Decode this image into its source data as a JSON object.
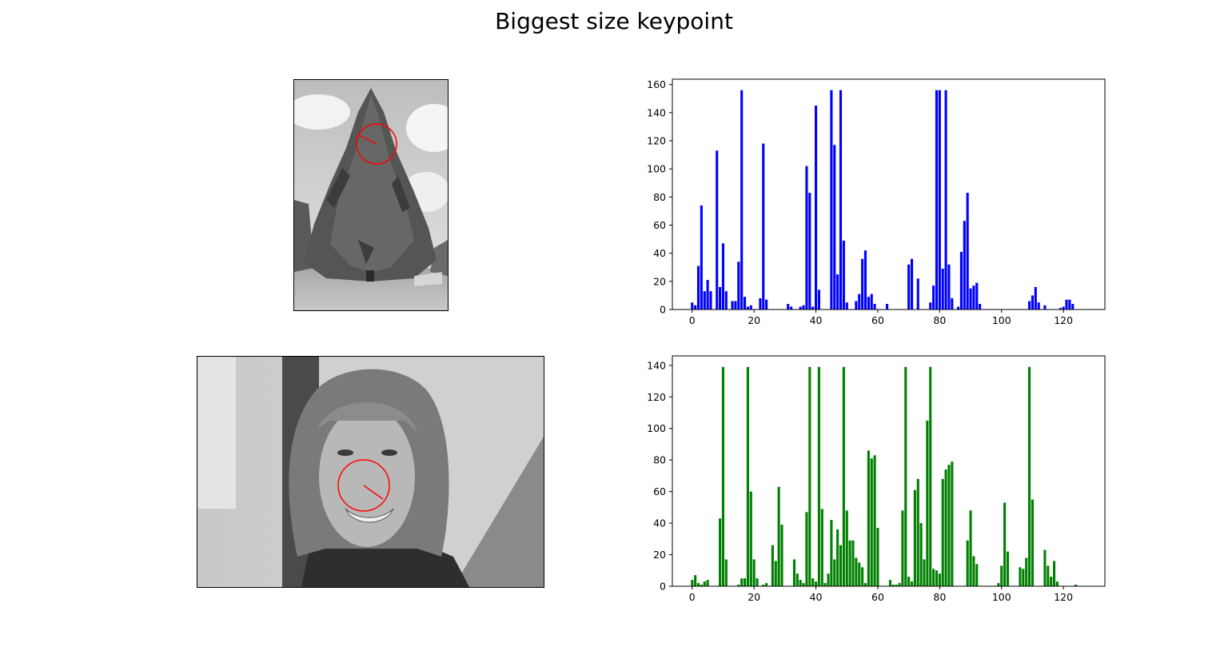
{
  "figure": {
    "title": "Biggest size keypoint"
  },
  "images": [
    {
      "name": "tree",
      "marker_color": "#ff0000"
    },
    {
      "name": "face",
      "marker_color": "#ff0000"
    }
  ],
  "chart_data": [
    {
      "type": "bar",
      "title": "",
      "xlabel": "",
      "ylabel": "",
      "color": "#0000ff",
      "xlim": [
        -6.4,
        133.4
      ],
      "ylim": [
        0,
        163.8
      ],
      "xticks": [
        0,
        20,
        40,
        60,
        80,
        100,
        120
      ],
      "yticks": [
        0,
        20,
        40,
        60,
        80,
        100,
        120,
        140,
        160
      ],
      "x": [
        0,
        1,
        2,
        3,
        4,
        5,
        6,
        7,
        8,
        9,
        10,
        11,
        12,
        13,
        14,
        15,
        16,
        17,
        18,
        19,
        20,
        21,
        22,
        23,
        24,
        25,
        26,
        27,
        28,
        29,
        30,
        31,
        32,
        33,
        34,
        35,
        36,
        37,
        38,
        39,
        40,
        41,
        42,
        43,
        44,
        45,
        46,
        47,
        48,
        49,
        50,
        51,
        52,
        53,
        54,
        55,
        56,
        57,
        58,
        59,
        60,
        61,
        62,
        63,
        64,
        65,
        66,
        67,
        68,
        69,
        70,
        71,
        72,
        73,
        74,
        75,
        76,
        77,
        78,
        79,
        80,
        81,
        82,
        83,
        84,
        85,
        86,
        87,
        88,
        89,
        90,
        91,
        92,
        93,
        94,
        95,
        96,
        97,
        98,
        99,
        100,
        101,
        102,
        103,
        104,
        105,
        106,
        107,
        108,
        109,
        110,
        111,
        112,
        113,
        114,
        115,
        116,
        117,
        118,
        119,
        120,
        121,
        122,
        123,
        124,
        125,
        126,
        127
      ],
      "values": [
        5,
        3,
        31,
        74,
        13,
        21,
        13,
        0,
        113,
        16,
        47,
        13,
        0,
        6,
        6,
        34,
        156,
        9,
        2,
        3,
        0,
        0,
        8,
        118,
        7,
        0,
        0,
        0,
        0,
        0,
        0,
        4,
        2,
        0,
        0,
        2,
        3,
        102,
        83,
        2,
        145,
        14,
        0,
        0,
        0,
        156,
        117,
        25,
        156,
        49,
        5,
        0,
        0,
        6,
        11,
        36,
        42,
        9,
        11,
        4,
        0,
        0,
        0,
        4,
        0,
        0,
        0,
        0,
        0,
        0,
        32,
        36,
        0,
        22,
        0,
        0,
        0,
        5,
        17,
        156,
        156,
        29,
        156,
        32,
        8,
        0,
        2,
        41,
        63,
        83,
        15,
        17,
        19,
        4,
        0,
        0,
        0,
        0,
        0,
        0,
        0,
        0,
        0,
        0,
        0,
        0,
        0,
        0,
        0,
        6,
        10,
        16,
        5,
        0,
        3,
        0,
        0,
        0,
        0,
        1,
        2,
        7,
        7,
        4,
        0,
        0,
        0,
        0
      ]
    },
    {
      "type": "bar",
      "title": "",
      "xlabel": "",
      "ylabel": "",
      "color": "#008000",
      "xlim": [
        -6.4,
        133.4
      ],
      "ylim": [
        0,
        146.0
      ],
      "xticks": [
        0,
        20,
        40,
        60,
        80,
        100,
        120
      ],
      "yticks": [
        0,
        20,
        40,
        60,
        80,
        100,
        120,
        140
      ],
      "x": [
        0,
        1,
        2,
        3,
        4,
        5,
        6,
        7,
        8,
        9,
        10,
        11,
        12,
        13,
        14,
        15,
        16,
        17,
        18,
        19,
        20,
        21,
        22,
        23,
        24,
        25,
        26,
        27,
        28,
        29,
        30,
        31,
        32,
        33,
        34,
        35,
        36,
        37,
        38,
        39,
        40,
        41,
        42,
        43,
        44,
        45,
        46,
        47,
        48,
        49,
        50,
        51,
        52,
        53,
        54,
        55,
        56,
        57,
        58,
        59,
        60,
        61,
        62,
        63,
        64,
        65,
        66,
        67,
        68,
        69,
        70,
        71,
        72,
        73,
        74,
        75,
        76,
        77,
        78,
        79,
        80,
        81,
        82,
        83,
        84,
        85,
        86,
        87,
        88,
        89,
        90,
        91,
        92,
        93,
        94,
        95,
        96,
        97,
        98,
        99,
        100,
        101,
        102,
        103,
        104,
        105,
        106,
        107,
        108,
        109,
        110,
        111,
        112,
        113,
        114,
        115,
        116,
        117,
        118,
        119,
        120,
        121,
        122,
        123,
        124,
        125,
        126,
        127
      ],
      "values": [
        4,
        7,
        2,
        1,
        3,
        4,
        0,
        0,
        0,
        43,
        139,
        17,
        0,
        0,
        0,
        1,
        5,
        5,
        139,
        60,
        17,
        5,
        0,
        1,
        2,
        0,
        26,
        16,
        63,
        39,
        0,
        0,
        0,
        17,
        8,
        4,
        2,
        47,
        139,
        5,
        3,
        139,
        49,
        2,
        8,
        42,
        17,
        36,
        26,
        139,
        48,
        29,
        29,
        18,
        15,
        12,
        2,
        86,
        81,
        83,
        37,
        0,
        0,
        0,
        4,
        1,
        1,
        2,
        48,
        139,
        6,
        3,
        61,
        68,
        40,
        17,
        105,
        139,
        11,
        10,
        8,
        68,
        74,
        77,
        79,
        0,
        0,
        0,
        0,
        29,
        48,
        19,
        14,
        0,
        0,
        0,
        0,
        0,
        0,
        2,
        13,
        53,
        22,
        0,
        0,
        0,
        12,
        11,
        18,
        139,
        55,
        0,
        0,
        0,
        23,
        13,
        6,
        16,
        3,
        0,
        0,
        0,
        0,
        0,
        1,
        0,
        0,
        0
      ]
    }
  ]
}
